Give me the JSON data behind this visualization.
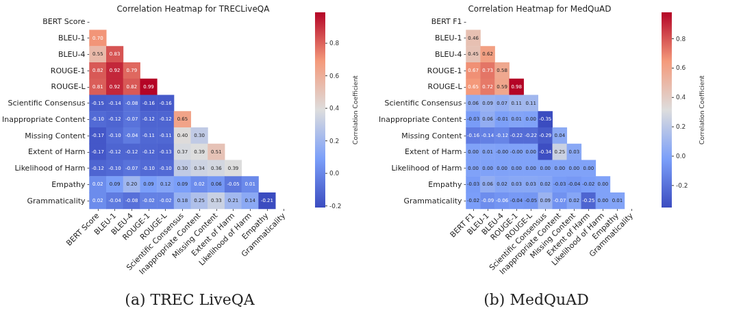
{
  "chart_data": [
    {
      "type": "heatmap",
      "title": "Correlation Heatmap for TRECLiveQA",
      "clabel": "Correlation Coefficient",
      "annotations": [
        "(a) TREC LiveQA"
      ],
      "categories": [
        "BERT Score",
        "BLEU-1",
        "BLEU-4",
        "ROUGE-1",
        "ROUGE-L",
        "Scientific Consensus",
        "Inappropriate Content",
        "Missing Content",
        "Extent of Harm",
        "Likelihood of Harm",
        "Empathy",
        "Grammaticality"
      ],
      "y_categories": [
        "BERT Score",
        "BLEU-1",
        "BLEU-4",
        "ROUGE-1",
        "ROUGE-L",
        "Scientific Consensus",
        "Inappropriate Content",
        "Missing Content",
        "Extent of Harm",
        "Likelihood of Harm",
        "Empathy",
        "Grammaticality"
      ],
      "clim": [
        -0.21,
        0.99
      ],
      "cticks": [
        -0.2,
        {
          "value": 0,
          "label": "0.0"
        },
        0.2,
        0.4,
        0.6,
        0.8
      ],
      "cell_labels": [
        [
          null,
          null,
          null,
          null,
          null,
          null,
          null,
          null,
          null,
          null,
          null,
          null
        ],
        [
          "0.70",
          null,
          null,
          null,
          null,
          null,
          null,
          null,
          null,
          null,
          null,
          null
        ],
        [
          "0.55",
          "0.83",
          null,
          null,
          null,
          null,
          null,
          null,
          null,
          null,
          null,
          null
        ],
        [
          "0.82",
          "0.92",
          "0.79",
          null,
          null,
          null,
          null,
          null,
          null,
          null,
          null,
          null
        ],
        [
          "0.81",
          "0.92",
          "0.82",
          "0.99",
          null,
          null,
          null,
          null,
          null,
          null,
          null,
          null
        ],
        [
          "-0.15",
          "-0.14",
          "-0.08",
          "-0.16",
          "-0.16",
          null,
          null,
          null,
          null,
          null,
          null,
          null
        ],
        [
          "-0.10",
          "-0.12",
          "-0.07",
          "-0.12",
          "-0.12",
          "0.65",
          null,
          null,
          null,
          null,
          null,
          null
        ],
        [
          "-0.17",
          "-0.10",
          "-0.04",
          "-0.11",
          "-0.11",
          "0.40",
          "0.30",
          null,
          null,
          null,
          null,
          null
        ],
        [
          "-0.17",
          "-0.12",
          "-0.12",
          "-0.12",
          "-0.13",
          "0.37",
          "0.39",
          "0.51",
          null,
          null,
          null,
          null
        ],
        [
          "-0.12",
          "-0.10",
          "-0.07",
          "-0.10",
          "-0.10",
          "0.30",
          "0.34",
          "0.36",
          "0.39",
          null,
          null,
          null
        ],
        [
          "0.02",
          "0.09",
          "0.20",
          "0.09",
          "0.12",
          "0.09",
          "0.02",
          "0.06",
          "-0.05",
          "0.01",
          null,
          null
        ],
        [
          "0.02",
          "-0.04",
          "-0.08",
          "-0.02",
          "-0.02",
          "0.18",
          "0.25",
          "0.33",
          "0.21",
          "0.14",
          "-0.21",
          null
        ]
      ],
      "cells": [
        [
          null,
          null,
          null,
          null,
          null,
          null,
          null,
          null,
          null,
          null,
          null,
          null
        ],
        [
          0.7,
          null,
          null,
          null,
          null,
          null,
          null,
          null,
          null,
          null,
          null,
          null
        ],
        [
          0.55,
          0.83,
          null,
          null,
          null,
          null,
          null,
          null,
          null,
          null,
          null,
          null
        ],
        [
          0.82,
          0.92,
          0.79,
          null,
          null,
          null,
          null,
          null,
          null,
          null,
          null,
          null
        ],
        [
          0.81,
          0.92,
          0.82,
          0.99,
          null,
          null,
          null,
          null,
          null,
          null,
          null,
          null
        ],
        [
          -0.15,
          -0.14,
          -0.08,
          -0.16,
          -0.16,
          null,
          null,
          null,
          null,
          null,
          null,
          null
        ],
        [
          -0.1,
          -0.12,
          -0.07,
          -0.12,
          -0.12,
          0.65,
          null,
          null,
          null,
          null,
          null,
          null
        ],
        [
          -0.17,
          -0.1,
          -0.04,
          -0.11,
          -0.11,
          0.4,
          0.3,
          null,
          null,
          null,
          null,
          null
        ],
        [
          -0.17,
          -0.12,
          -0.12,
          -0.12,
          -0.13,
          0.37,
          0.39,
          0.51,
          null,
          null,
          null,
          null
        ],
        [
          -0.12,
          -0.1,
          -0.07,
          -0.1,
          -0.1,
          0.3,
          0.34,
          0.36,
          0.39,
          null,
          null,
          null
        ],
        [
          0.02,
          0.09,
          0.2,
          0.09,
          0.12,
          0.09,
          0.02,
          0.06,
          -0.05,
          0.01,
          null,
          null
        ],
        [
          0.02,
          -0.04,
          -0.08,
          -0.02,
          -0.02,
          0.18,
          0.25,
          0.33,
          0.21,
          0.14,
          -0.21,
          null
        ]
      ]
    },
    {
      "type": "heatmap",
      "title": "Correlation Heatmap for MedQuAD",
      "clabel": "Correlation Coefficient",
      "annotations": [
        "(b) MedQuAD"
      ],
      "categories": [
        "BERT F1",
        "BLEU-1",
        "BLEU-4",
        "ROUGE-1",
        "ROUGE-L",
        "Scientific Consensus",
        "Inappropriate Content",
        "Missing Content",
        "Extent of Harm",
        "Likelihood of Harm",
        "Empathy",
        "Grammaticality"
      ],
      "y_categories": [
        "BERT F1",
        "BLEU-1",
        "BLEU-4",
        "ROUGE-1",
        "ROUGE-L",
        "Scientific Consensus",
        "Inappropriate Content",
        "Missing Content",
        "Extent of Harm",
        "Likelihood of Harm",
        "Empathy",
        "Grammaticality"
      ],
      "clim": [
        -0.35,
        0.98
      ],
      "cticks": [
        -0.2,
        {
          "value": 0,
          "label": "0.0"
        },
        0.2,
        0.4,
        0.6,
        0.8
      ],
      "cells": [
        [
          null,
          null,
          null,
          null,
          null,
          null,
          null,
          null,
          null,
          null,
          null,
          null
        ],
        [
          0.46,
          null,
          null,
          null,
          null,
          null,
          null,
          null,
          null,
          null,
          null,
          null
        ],
        [
          0.45,
          0.62,
          null,
          null,
          null,
          null,
          null,
          null,
          null,
          null,
          null,
          null
        ],
        [
          0.67,
          0.73,
          0.58,
          null,
          null,
          null,
          null,
          null,
          null,
          null,
          null,
          null
        ],
        [
          0.65,
          0.72,
          0.59,
          0.98,
          null,
          null,
          null,
          null,
          null,
          null,
          null,
          null
        ],
        [
          0.06,
          0.09,
          0.07,
          0.11,
          0.11,
          null,
          null,
          null,
          null,
          null,
          null,
          null
        ],
        [
          -0.03,
          0.06,
          -0.01,
          0.01,
          0.0,
          -0.35,
          null,
          null,
          null,
          null,
          null,
          null
        ],
        [
          -0.16,
          -0.14,
          -0.12,
          -0.22,
          -0.22,
          -0.29,
          0.04,
          null,
          null,
          null,
          null,
          null
        ],
        [
          0.0,
          0.01,
          0.0,
          0.0,
          0.0,
          -0.34,
          0.25,
          0.03,
          null,
          null,
          null,
          null
        ],
        [
          0.0,
          0.0,
          0.0,
          0.0,
          0.0,
          0.0,
          0.0,
          0.0,
          0.0,
          null,
          null,
          null
        ],
        [
          -0.03,
          0.06,
          0.02,
          0.03,
          0.03,
          0.02,
          -0.03,
          -0.04,
          -0.02,
          0.0,
          null,
          null
        ],
        [
          -0.02,
          -0.09,
          -0.06,
          -0.04,
          -0.05,
          0.09,
          -0.07,
          0.02,
          -0.25,
          0.0,
          0.01,
          null
        ]
      ],
      "cell_labels": [
        [
          null,
          null,
          null,
          null,
          null,
          null,
          null,
          null,
          null,
          null,
          null,
          null
        ],
        [
          "0.46",
          null,
          null,
          null,
          null,
          null,
          null,
          null,
          null,
          null,
          null,
          null
        ],
        [
          "0.45",
          "0.62",
          null,
          null,
          null,
          null,
          null,
          null,
          null,
          null,
          null,
          null
        ],
        [
          "0.67",
          "0.73",
          "0.58",
          null,
          null,
          null,
          null,
          null,
          null,
          null,
          null,
          null
        ],
        [
          "0.65",
          "0.72",
          "0.59",
          "0.98",
          null,
          null,
          null,
          null,
          null,
          null,
          null,
          null
        ],
        [
          "0.06",
          "0.09",
          "0.07",
          "0.11",
          "0.11",
          null,
          null,
          null,
          null,
          null,
          null,
          null
        ],
        [
          "-0.03",
          "0.06",
          "-0.01",
          "0.01",
          "0.00",
          "-0.35",
          null,
          null,
          null,
          null,
          null,
          null
        ],
        [
          "-0.16",
          "-0.14",
          "-0.12",
          "-0.22",
          "-0.22",
          "-0.29",
          "0.04",
          null,
          null,
          null,
          null,
          null
        ],
        [
          "0.00",
          "0.01",
          "-0.00",
          "-0.00",
          "0.00",
          "-0.34",
          "0.25",
          "0.03",
          null,
          null,
          null,
          null
        ],
        [
          "0.00",
          "0.00",
          "0.00",
          "0.00",
          "0.00",
          "0.00",
          "0.00",
          "0.00",
          "0.00",
          null,
          null,
          null
        ],
        [
          "-0.03",
          "0.06",
          "0.02",
          "0.03",
          "0.03",
          "0.02",
          "-0.03",
          "-0.04",
          "-0.02",
          "0.00",
          null,
          null
        ],
        [
          "-0.02",
          "-0.09",
          "-0.06",
          "-0.04",
          "-0.05",
          "0.09",
          "-0.07",
          "0.02",
          "-0.25",
          "0.00",
          "0.01",
          null
        ]
      ]
    }
  ]
}
